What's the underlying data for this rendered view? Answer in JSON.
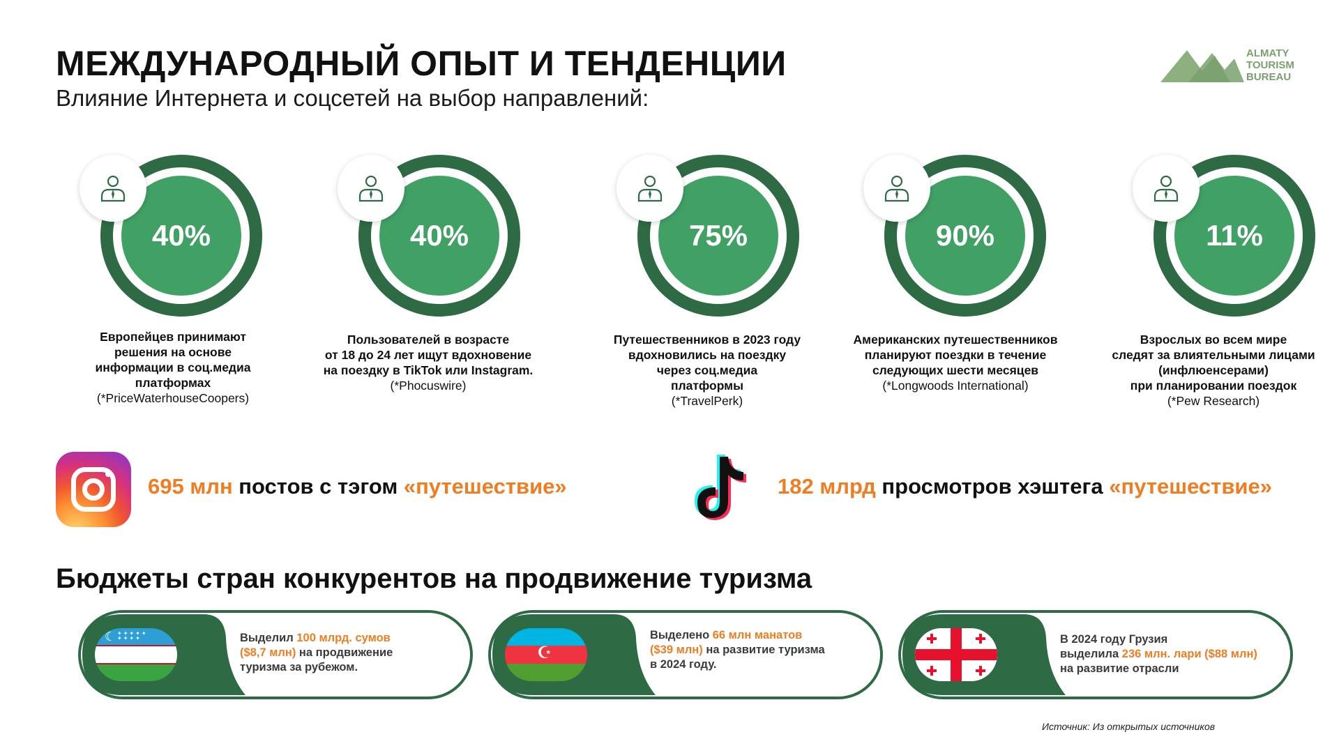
{
  "header": {
    "title": "МЕЖДУНАРОДНЫЙ ОПЫТ И ТЕНДЕНЦИИ",
    "subtitle": "Влияние Интернета и соцсетей на выбор направлений:"
  },
  "logo": {
    "line1": "ALMATY",
    "line2": "TOURISM",
    "line3": "BUREAU",
    "color": "#7aa06e"
  },
  "colors": {
    "ring_dark": "#2e6b45",
    "ring_fill": "#41a165",
    "accent_orange": "#f07d22"
  },
  "stats": [
    {
      "value": "40%",
      "desc": "Европейцев принимают\nрешения на основе\nинформации в соц.медиа\nплатформах",
      "source": "(*PriceWaterhouseCoopers)",
      "icon": "person-icon"
    },
    {
      "value": "40%",
      "desc": "Пользователей в возрасте\nот 18 до 24 лет ищут вдохновение\nна поездку в TikTok или Instagram.",
      "source": "(*Phocuswire)",
      "icon": "person-icon"
    },
    {
      "value": "75%",
      "desc": "Путешественников в 2023 году\nвдохновились на поездку\nчерез соц.медиа\nплатформы",
      "source": "(*TravelPerk)",
      "icon": "person-icon"
    },
    {
      "value": "90%",
      "desc": "Американских путешественников\nпланируют поездки в течение\nследующих шести месяцев",
      "source": "(*Longwoods International)",
      "icon": "person-icon"
    },
    {
      "value": "11%",
      "desc": "Взрослых во всем мире\nследят за влиятельными лицами\n(инфлюенсерами)\nпри планировании поездок",
      "source": "(*Pew Research)",
      "icon": "person-icon"
    }
  ],
  "social": {
    "instagram": {
      "number": "695 млн",
      "text": " постов с тэгом ",
      "tag": "«путешествие»",
      "icon": "instagram-icon"
    },
    "tiktok": {
      "number": "182 млрд",
      "text": " просмотров хэштега ",
      "tag": "«путешествие»",
      "icon": "tiktok-icon"
    }
  },
  "budgets_title": "Бюджеты стран конкурентов на продвижение туризма",
  "budgets": [
    {
      "country_flag": "uzbekistan-flag",
      "p1": "Выделил ",
      "o1": "100 млрд. сумов",
      "o2": "($8,7 млн)",
      "p2": " на продвижение",
      "p3": "туризма за рубежом."
    },
    {
      "country_flag": "azerbaijan-flag",
      "p1": "Выделено ",
      "o1": "66 млн манатов",
      "o2": "($39 млн)",
      "p2": " на развитие туризма",
      "p3": "в 2024 году."
    },
    {
      "country_flag": "georgia-flag",
      "p1": "В 2024 году Грузия",
      "p1b": "выделила ",
      "o1": "236 млн. лари ($88 млн)",
      "p3": "на развитие отрасли"
    }
  ],
  "source_note": "Источник: Из открытых источников"
}
